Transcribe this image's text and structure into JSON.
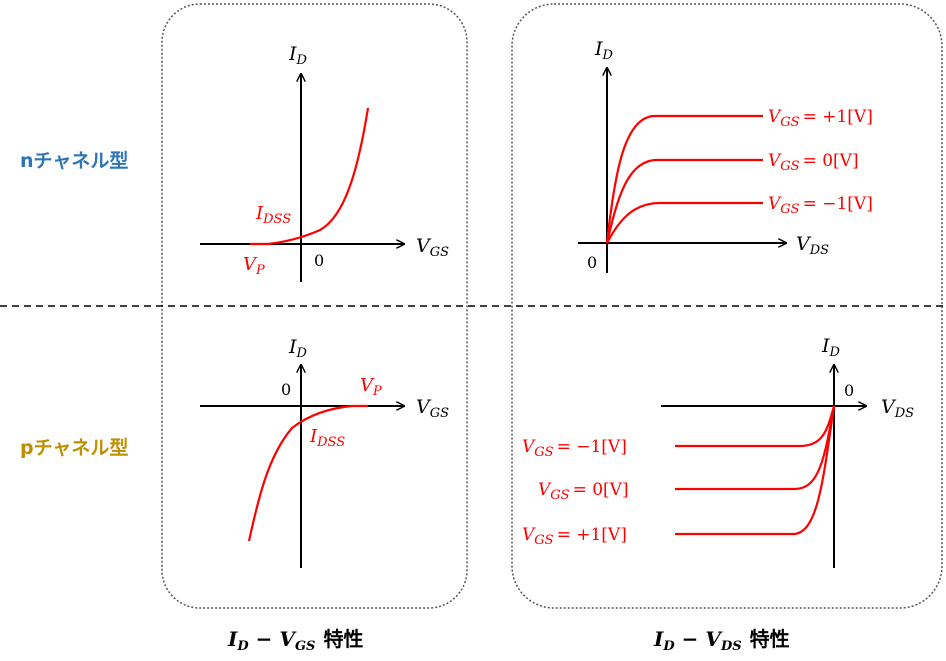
{
  "colors": {
    "curve": "#ff0000",
    "axis": "#000000",
    "n_label": "#2e75b6",
    "p_label": "#bf8f00",
    "frame": "#555555"
  },
  "rows": {
    "n_channel": "nチャネル型",
    "p_channel": "pチャネル型"
  },
  "captions": {
    "left": {
      "i": "I",
      "i_sub": "D",
      "op": "−",
      "v": "V",
      "v_sub": "GS",
      "word": "特性"
    },
    "right": {
      "i": "I",
      "i_sub": "D",
      "op": "−",
      "v": "V",
      "v_sub": "DS",
      "word": "特性"
    }
  },
  "axes": {
    "id": {
      "main": "I",
      "sub": "D"
    },
    "vgs": {
      "main": "V",
      "sub": "GS"
    },
    "vds": {
      "main": "V",
      "sub": "DS"
    },
    "zero": "0"
  },
  "points": {
    "vp": {
      "main": "V",
      "sub": "P"
    },
    "idss": {
      "main": "I",
      "sub": "DSS"
    }
  },
  "curves": {
    "vgs_sym": {
      "main": "V",
      "sub": "GS"
    },
    "n": [
      {
        "value": "= +1[V]"
      },
      {
        "value": "= 0[V]"
      },
      {
        "value": "= −1[V]"
      }
    ],
    "p": [
      {
        "value": "= −1[V]"
      },
      {
        "value": "= 0[V]"
      },
      {
        "value": "= +1[V]"
      }
    ]
  }
}
